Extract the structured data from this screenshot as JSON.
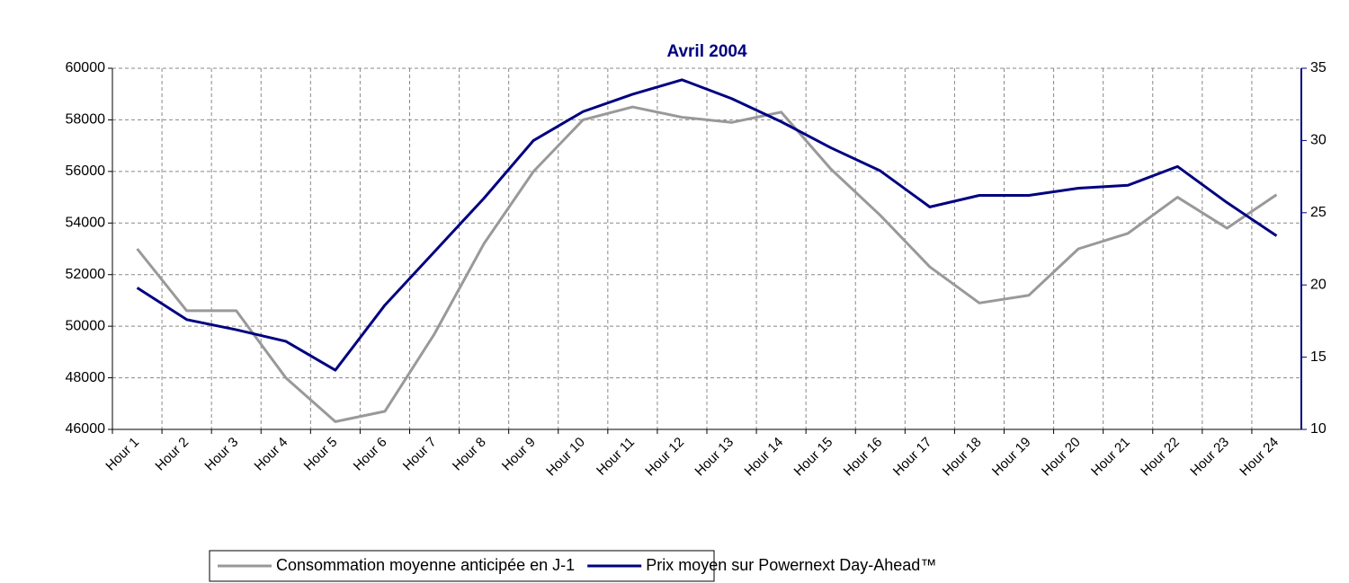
{
  "chart_data": {
    "type": "line",
    "title": "Avril 2004",
    "categories": [
      "Hour 1",
      "Hour 2",
      "Hour 3",
      "Hour 4",
      "Hour 5",
      "Hour 6",
      "Hour 7",
      "Hour 8",
      "Hour 9",
      "Hour 10",
      "Hour 11",
      "Hour 12",
      "Hour 13",
      "Hour 14",
      "Hour 15",
      "Hour 16",
      "Hour 17",
      "Hour 18",
      "Hour 19",
      "Hour 20",
      "Hour 21",
      "Hour 22",
      "Hour 23",
      "Hour 24"
    ],
    "series": [
      {
        "name": "Consommation moyenne anticipée en J-1",
        "color": "#999999",
        "values": [
          53000,
          50600,
          50600,
          48000,
          46300,
          46700,
          49700,
          53200,
          56000,
          58000,
          58500,
          58100,
          57900,
          58300,
          56100,
          54300,
          52300,
          50900,
          51200,
          53000,
          53600,
          55000,
          53800,
          55100
        ]
      },
      {
        "name": "Prix moyen sur Powernext Day-Ahead™",
        "color": "#000080",
        "axis": "y2",
        "values": [
          19.8,
          17.6,
          16.9,
          16.1,
          14.1,
          18.6,
          22.3,
          26.0,
          30.0,
          32.0,
          33.2,
          34.2,
          32.9,
          31.3,
          29.5,
          27.9,
          25.4,
          26.2,
          26.2,
          26.7,
          26.9,
          28.2,
          25.7,
          23.4
        ]
      }
    ],
    "ylim": [
      46000,
      60000
    ],
    "yticks": [
      46000,
      48000,
      50000,
      52000,
      54000,
      56000,
      58000,
      60000
    ],
    "y2lim": [
      10,
      35
    ],
    "y2ticks": [
      10,
      15,
      20,
      25,
      30,
      35
    ],
    "grid": true,
    "legend": "bottom"
  }
}
